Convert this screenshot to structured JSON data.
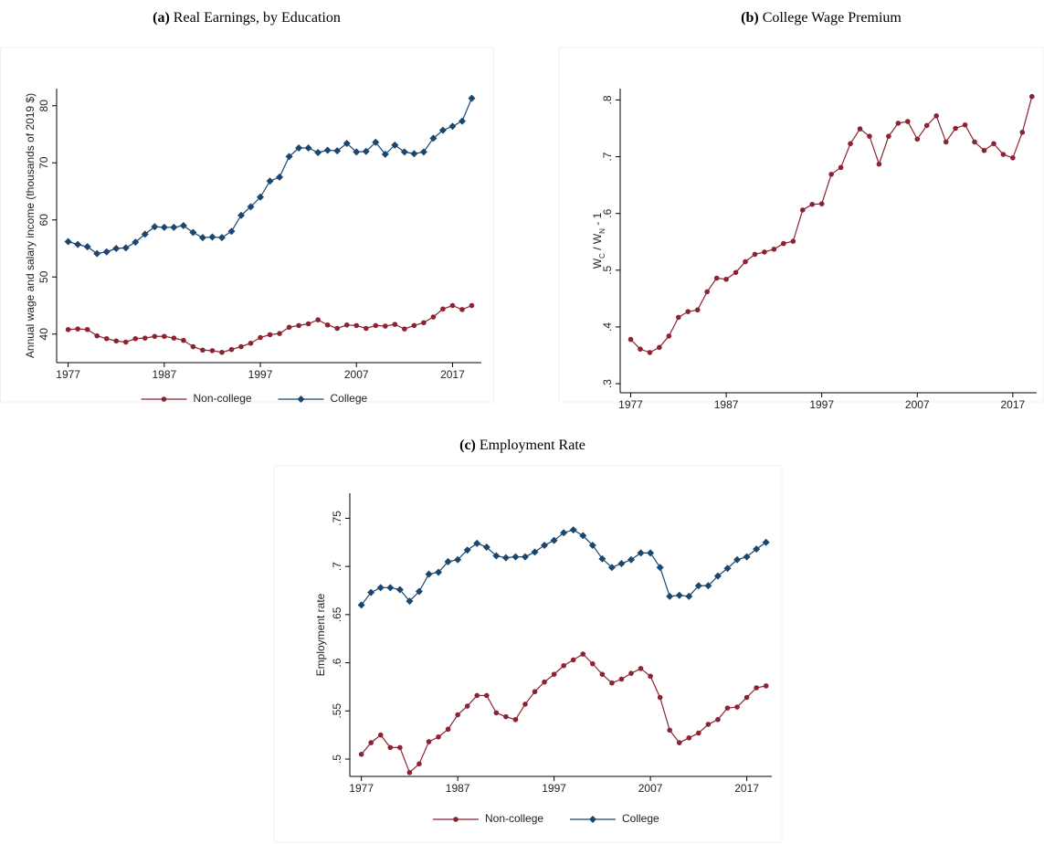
{
  "chart_data": [
    {
      "type": "line",
      "panel": "(a)",
      "title": "Real Earnings, by Education",
      "ylabel": [
        "Annual wage and salary income (thousands of 2019 $)"
      ],
      "x": [
        1977,
        1978,
        1979,
        1980,
        1981,
        1982,
        1983,
        1984,
        1985,
        1986,
        1987,
        1988,
        1989,
        1990,
        1991,
        1992,
        1993,
        1994,
        1995,
        1996,
        1997,
        1998,
        1999,
        2000,
        2001,
        2002,
        2003,
        2004,
        2005,
        2006,
        2007,
        2008,
        2009,
        2010,
        2011,
        2012,
        2013,
        2014,
        2015,
        2016,
        2017,
        2018,
        2019
      ],
      "series": [
        {
          "name": "Non-college",
          "color": "#8b2332",
          "marker": "circle",
          "values": [
            40.8,
            40.9,
            40.8,
            39.7,
            39.2,
            38.8,
            38.6,
            39.2,
            39.3,
            39.6,
            39.6,
            39.3,
            38.9,
            37.8,
            37.2,
            37.1,
            36.8,
            37.3,
            37.8,
            38.4,
            39.4,
            39.9,
            40.1,
            41.2,
            41.5,
            41.8,
            42.5,
            41.6,
            41.0,
            41.6,
            41.5,
            41.0,
            41.5,
            41.4,
            41.7,
            40.9,
            41.5,
            42.0,
            43.0,
            44.4,
            45.0,
            44.3,
            45.0
          ]
        },
        {
          "name": "College",
          "color": "#1a476f",
          "marker": "diamond",
          "values": [
            56.2,
            55.7,
            55.3,
            54.1,
            54.4,
            55.0,
            55.1,
            56.1,
            57.5,
            58.8,
            58.7,
            58.7,
            59.0,
            57.8,
            56.9,
            57.0,
            56.9,
            58.0,
            60.8,
            62.3,
            64.0,
            66.8,
            67.5,
            71.1,
            72.6,
            72.6,
            71.8,
            72.2,
            72.1,
            73.4,
            71.9,
            72.0,
            73.6,
            71.5,
            73.1,
            71.9,
            71.6,
            71.9,
            74.3,
            75.7,
            76.4,
            77.3,
            81.3
          ]
        }
      ],
      "xlim": [
        1975.8,
        2020
      ],
      "xticks": [
        1977,
        1987,
        1997,
        2007,
        2017
      ],
      "ylim": [
        35,
        83
      ],
      "yticks": [
        40,
        50,
        60,
        70,
        80
      ],
      "legend": "bottom"
    },
    {
      "type": "line",
      "panel": "(b)",
      "title": "College Wage Premium",
      "ylabel": [
        "W",
        "C",
        " / W",
        "N",
        " - 1"
      ],
      "x": [
        1977,
        1978,
        1979,
        1980,
        1981,
        1982,
        1983,
        1984,
        1985,
        1986,
        1987,
        1988,
        1989,
        1990,
        1991,
        1992,
        1993,
        1994,
        1995,
        1996,
        1997,
        1998,
        1999,
        2000,
        2001,
        2002,
        2003,
        2004,
        2005,
        2006,
        2007,
        2008,
        2009,
        2010,
        2011,
        2012,
        2013,
        2014,
        2015,
        2016,
        2017,
        2018,
        2019
      ],
      "series": [
        {
          "color": "#8b2332",
          "marker": "circle",
          "values": [
            0.378,
            0.361,
            0.355,
            0.364,
            0.384,
            0.417,
            0.427,
            0.43,
            0.462,
            0.486,
            0.484,
            0.496,
            0.515,
            0.528,
            0.532,
            0.537,
            0.547,
            0.551,
            0.606,
            0.616,
            0.617,
            0.669,
            0.681,
            0.723,
            0.749,
            0.736,
            0.687,
            0.736,
            0.759,
            0.762,
            0.731,
            0.755,
            0.772,
            0.726,
            0.75,
            0.756,
            0.726,
            0.711,
            0.723,
            0.704,
            0.698,
            0.743,
            0.806
          ]
        }
      ],
      "xlim": [
        1975.9,
        2019.5
      ],
      "xticks": [
        1977,
        1987,
        1997,
        2007,
        2017
      ],
      "ylim": [
        0.284,
        0.82
      ],
      "yticks": [
        {
          "value": 0.3,
          "label": ".3"
        },
        {
          "value": 0.4,
          "label": ".4"
        },
        {
          "value": 0.5,
          "label": ".5"
        },
        {
          "value": 0.6,
          "label": ".6"
        },
        {
          "value": 0.7,
          "label": ".7"
        },
        {
          "value": 0.8,
          "label": ".8"
        }
      ]
    },
    {
      "type": "line",
      "panel": "(c)",
      "title": "Employment Rate",
      "ylabel": [
        "Employment rate"
      ],
      "x": [
        1977,
        1978,
        1979,
        1980,
        1981,
        1982,
        1983,
        1984,
        1985,
        1986,
        1987,
        1988,
        1989,
        1990,
        1991,
        1992,
        1993,
        1994,
        1995,
        1996,
        1997,
        1998,
        1999,
        2000,
        2001,
        2002,
        2003,
        2004,
        2005,
        2006,
        2007,
        2008,
        2009,
        2010,
        2011,
        2012,
        2013,
        2014,
        2015,
        2016,
        2017,
        2018,
        2019
      ],
      "series": [
        {
          "name": "Non-college",
          "color": "#8b2332",
          "marker": "circle",
          "values": [
            0.505,
            0.517,
            0.525,
            0.512,
            0.512,
            0.486,
            0.495,
            0.518,
            0.523,
            0.531,
            0.546,
            0.555,
            0.566,
            0.566,
            0.548,
            0.544,
            0.541,
            0.557,
            0.57,
            0.58,
            0.588,
            0.597,
            0.603,
            0.609,
            0.599,
            0.588,
            0.579,
            0.583,
            0.589,
            0.594,
            0.586,
            0.564,
            0.53,
            0.517,
            0.522,
            0.527,
            0.536,
            0.541,
            0.553,
            0.554,
            0.564,
            0.574,
            0.576
          ]
        },
        {
          "name": "College",
          "color": "#1a476f",
          "marker": "diamond",
          "values": [
            0.66,
            0.673,
            0.678,
            0.678,
            0.676,
            0.664,
            0.674,
            0.692,
            0.694,
            0.705,
            0.707,
            0.717,
            0.724,
            0.72,
            0.711,
            0.709,
            0.71,
            0.71,
            0.715,
            0.722,
            0.727,
            0.735,
            0.738,
            0.732,
            0.722,
            0.708,
            0.699,
            0.703,
            0.707,
            0.714,
            0.714,
            0.699,
            0.669,
            0.67,
            0.669,
            0.68,
            0.68,
            0.69,
            0.698,
            0.707,
            0.71,
            0.718,
            0.725
          ]
        }
      ],
      "xlim": [
        1975.8,
        2019.6
      ],
      "xticks": [
        1977,
        1987,
        1997,
        2007,
        2017
      ],
      "ylim": [
        0.482,
        0.776
      ],
      "yticks": [
        {
          "value": 0.5,
          "label": ".5"
        },
        {
          "value": 0.55,
          "label": ".55"
        },
        {
          "value": 0.6,
          "label": ".6"
        },
        {
          "value": 0.65,
          "label": ".65"
        },
        {
          "value": 0.7,
          "label": ".7"
        },
        {
          "value": 0.75,
          "label": ".75"
        }
      ],
      "legend": "bottom"
    }
  ]
}
